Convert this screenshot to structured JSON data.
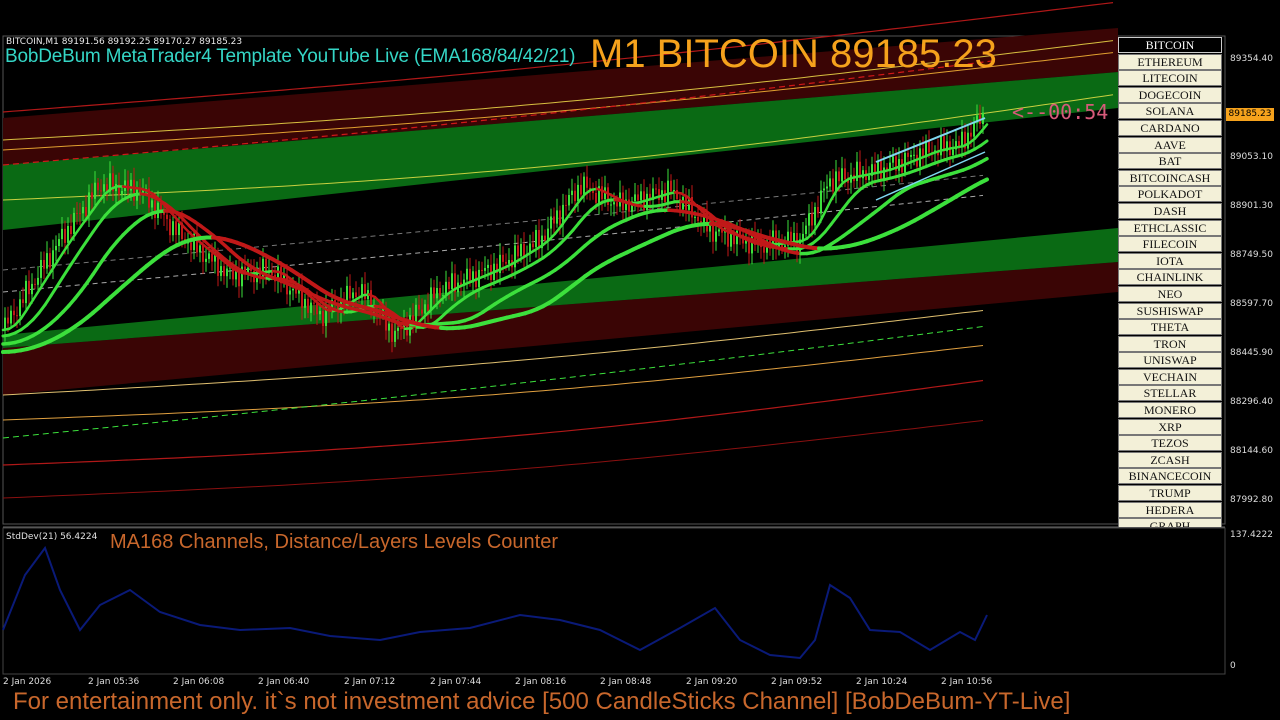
{
  "header": {
    "symbol_info": "BITCOIN,M1  89191.56 89192.25 89170.27 89185.23",
    "template_title": "BobDeBum MetaTrader4 Template YouTube Live (EMA168/84/42/21)",
    "big_title": "M1 BITCOIN 89185.23",
    "countdown": "<--00:54"
  },
  "price_axis": {
    "labels": [
      "89354.40",
      "89053.10",
      "88901.30",
      "88749.50",
      "88597.70",
      "88445.90",
      "88296.40",
      "88144.60",
      "87992.80"
    ],
    "current_price": "89185.23"
  },
  "time_axis": {
    "labels": [
      "2 Jan 2026",
      "2 Jan 05:36",
      "2 Jan 06:08",
      "2 Jan 06:40",
      "2 Jan 07:12",
      "2 Jan 07:44",
      "2 Jan 08:16",
      "2 Jan 08:48",
      "2 Jan 09:20",
      "2 Jan 09:52",
      "2 Jan 10:24",
      "2 Jan 10:56"
    ]
  },
  "indicator": {
    "label": "StdDev(21) 56.4224",
    "title": "MA168 Channels, Distance/Layers Levels Counter",
    "axis_max": "137.4222",
    "axis_min": "0"
  },
  "symbols": [
    "BITCOIN",
    "ETHEREUM",
    "LITECOIN",
    "DOGECOIN",
    "SOLANA",
    "CARDANO",
    "AAVE",
    "BAT",
    "BITCOINCASH",
    "POLKADOT",
    "DASH",
    "ETHCLASSIC",
    "FILECOIN",
    "IOTA",
    "CHAINLINK",
    "NEO",
    "SUSHISWAP",
    "THETA",
    "TRON",
    "UNISWAP",
    "VECHAIN",
    "STELLAR",
    "MONERO",
    "XRP",
    "TEZOS",
    "ZCASH",
    "BINANCECOIN",
    "TRUMP",
    "HEDERA",
    "GRAPH"
  ],
  "active_symbol": "BITCOIN",
  "footer": {
    "disclaimer": "For entertainment only. it`s not investment advice [500 CandleSticks Channel] [BobDeBum-YT-Live]"
  },
  "colors": {
    "background": "#000000",
    "green_band": "#0a6a14",
    "red_band": "#3a0505",
    "ema_green": "#3ce03c",
    "ema_red": "#c01818",
    "title_orange": "#f5a21c",
    "template_cyan": "#35d6c6",
    "stddev_line": "#0a1a78"
  }
}
